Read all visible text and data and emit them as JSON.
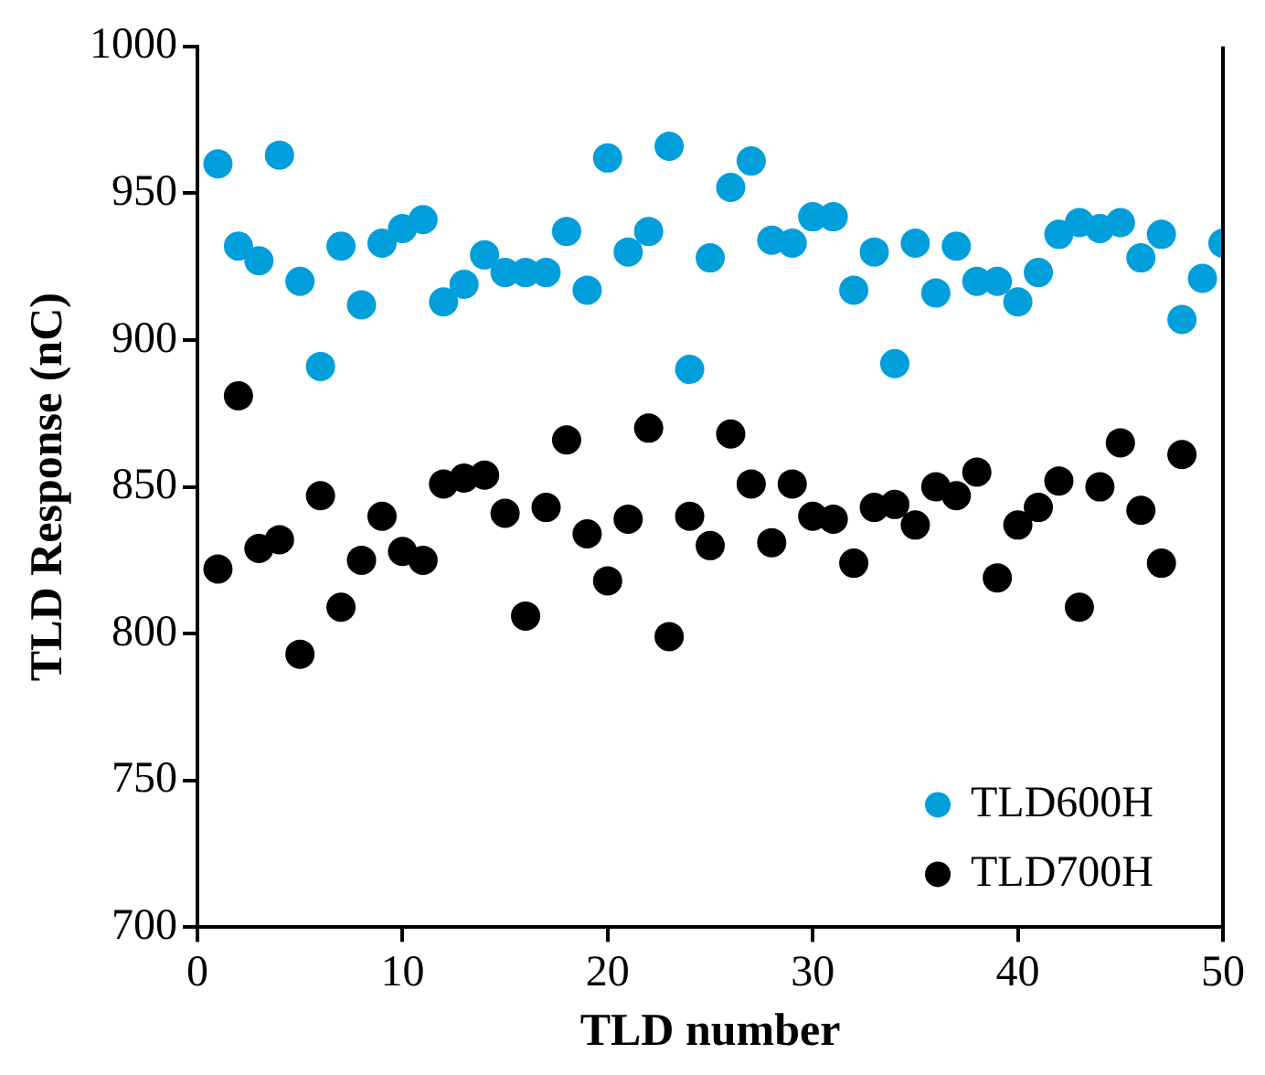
{
  "chart_data": {
    "type": "scatter",
    "xlabel": "TLD number",
    "ylabel": "TLD Response (nC)",
    "xlim": [
      0,
      50
    ],
    "xticks": [
      0,
      10,
      20,
      30,
      40,
      50
    ],
    "ylim": [
      700,
      1000
    ],
    "yticks": [
      700,
      750,
      800,
      850,
      900,
      950,
      1000
    ],
    "grid": false,
    "legend": "bottom right",
    "marker": "circle",
    "series": [
      {
        "name": "TLD600H",
        "color": "#009fdb",
        "x": [
          1,
          2,
          3,
          4,
          5,
          6,
          7,
          8,
          9,
          10,
          11,
          12,
          13,
          14,
          15,
          16,
          17,
          18,
          19,
          20,
          21,
          22,
          23,
          24,
          25,
          26,
          27,
          28,
          29,
          30,
          31,
          32,
          33,
          34,
          35,
          36,
          37,
          38,
          39,
          40,
          41,
          42,
          43,
          44,
          45,
          46,
          47,
          48,
          49,
          50
        ],
        "values": [
          960,
          932,
          927,
          963,
          920,
          891,
          932,
          912,
          933,
          938,
          941,
          913,
          919,
          929,
          923,
          923,
          923,
          937,
          917,
          962,
          930,
          937,
          966,
          890,
          928,
          952,
          961,
          934,
          933,
          942,
          942,
          917,
          930,
          892,
          933,
          916,
          932,
          920,
          920,
          913,
          923,
          936,
          940,
          938,
          940,
          928,
          936,
          907,
          921,
          933
        ]
      },
      {
        "name": "TLD700H",
        "color": "#000000",
        "x": [
          1,
          2,
          3,
          4,
          5,
          6,
          7,
          8,
          9,
          10,
          11,
          12,
          13,
          14,
          15,
          16,
          17,
          18,
          19,
          20,
          21,
          22,
          23,
          24,
          25,
          26,
          27,
          28,
          29,
          30,
          31,
          32,
          33,
          34,
          35,
          36,
          37,
          38,
          39,
          40,
          41,
          42,
          43,
          44,
          45,
          46,
          47,
          48
        ],
        "values": [
          822,
          881,
          829,
          832,
          793,
          847,
          809,
          825,
          840,
          828,
          825,
          851,
          853,
          854,
          841,
          806,
          843,
          866,
          834,
          818,
          839,
          870,
          799,
          840,
          830,
          868,
          851,
          831,
          851,
          840,
          839,
          824,
          843,
          844,
          837,
          850,
          847,
          855,
          819,
          837,
          843,
          852,
          809,
          850,
          865,
          842,
          824,
          861
        ]
      }
    ]
  }
}
